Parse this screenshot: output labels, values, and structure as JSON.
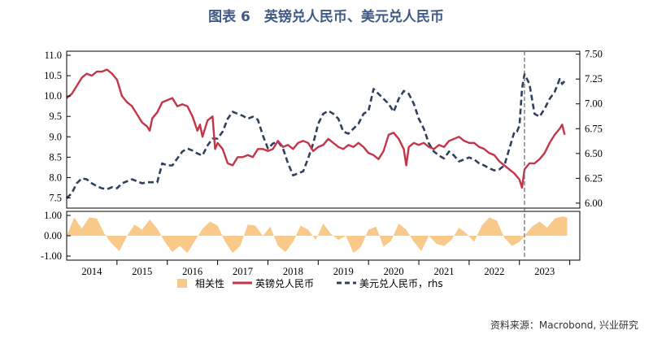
{
  "chart_data": {
    "type": "line",
    "title": "图表 6　英镑兑人民币、美元兑人民币",
    "source": "资料来源：Macrobond, 兴业研究",
    "x_tick_labels": [
      "2014",
      "2015",
      "2016",
      "2017",
      "2018",
      "2019",
      "2020",
      "2021",
      "2022",
      "2023"
    ],
    "xlim": [
      2013.5,
      2023.7
    ],
    "vertical_line_at": 2022.6,
    "left_axis": {
      "ylim": [
        7.25,
        11.1
      ],
      "ticks": [
        "7.5",
        "8.0",
        "8.5",
        "9.0",
        "9.5",
        "10.0",
        "10.5",
        "11.0"
      ]
    },
    "right_axis": {
      "ylim": [
        5.95,
        7.53
      ],
      "ticks": [
        "6.00",
        "6.25",
        "6.50",
        "6.75",
        "7.00",
        "7.25",
        "7.50"
      ]
    },
    "bottom_axis": {
      "ylim": [
        -1.2,
        1.2
      ],
      "ticks": [
        "1.00",
        "0.00",
        "-1.00"
      ]
    },
    "legend": [
      {
        "name": "相关性",
        "color": "#f9c98a",
        "style": "bar"
      },
      {
        "name": "英镑兑人民币",
        "color": "#c4354a",
        "style": "solid"
      },
      {
        "name": "美元兑人民币，rhs",
        "color": "#2f4060",
        "style": "dashed"
      }
    ],
    "series": [
      {
        "name": "英镑兑人民币",
        "axis": "left",
        "points": [
          [
            2013.5,
            9.95
          ],
          [
            2013.6,
            10.05
          ],
          [
            2013.7,
            10.25
          ],
          [
            2013.8,
            10.45
          ],
          [
            2013.9,
            10.55
          ],
          [
            2014.0,
            10.5
          ],
          [
            2014.1,
            10.6
          ],
          [
            2014.2,
            10.6
          ],
          [
            2014.3,
            10.65
          ],
          [
            2014.4,
            10.55
          ],
          [
            2014.5,
            10.4
          ],
          [
            2014.6,
            10.0
          ],
          [
            2014.7,
            9.85
          ],
          [
            2014.8,
            9.75
          ],
          [
            2014.9,
            9.55
          ],
          [
            2015.0,
            9.35
          ],
          [
            2015.1,
            9.25
          ],
          [
            2015.15,
            9.15
          ],
          [
            2015.2,
            9.45
          ],
          [
            2015.3,
            9.6
          ],
          [
            2015.4,
            9.85
          ],
          [
            2015.5,
            9.9
          ],
          [
            2015.6,
            9.95
          ],
          [
            2015.7,
            9.75
          ],
          [
            2015.8,
            9.8
          ],
          [
            2015.9,
            9.75
          ],
          [
            2016.0,
            9.5
          ],
          [
            2016.1,
            9.15
          ],
          [
            2016.15,
            9.3
          ],
          [
            2016.2,
            9.0
          ],
          [
            2016.3,
            9.4
          ],
          [
            2016.4,
            9.5
          ],
          [
            2016.45,
            8.7
          ],
          [
            2016.5,
            8.85
          ],
          [
            2016.6,
            8.7
          ],
          [
            2016.7,
            8.35
          ],
          [
            2016.8,
            8.3
          ],
          [
            2016.9,
            8.5
          ],
          [
            2017.0,
            8.5
          ],
          [
            2017.1,
            8.55
          ],
          [
            2017.2,
            8.5
          ],
          [
            2017.3,
            8.7
          ],
          [
            2017.4,
            8.7
          ],
          [
            2017.5,
            8.65
          ],
          [
            2017.6,
            8.7
          ],
          [
            2017.7,
            8.9
          ],
          [
            2017.8,
            8.75
          ],
          [
            2017.9,
            8.8
          ],
          [
            2018.0,
            8.7
          ],
          [
            2018.1,
            8.85
          ],
          [
            2018.2,
            8.9
          ],
          [
            2018.3,
            8.85
          ],
          [
            2018.4,
            8.65
          ],
          [
            2018.5,
            8.75
          ],
          [
            2018.6,
            8.8
          ],
          [
            2018.7,
            8.95
          ],
          [
            2018.8,
            8.85
          ],
          [
            2018.9,
            8.75
          ],
          [
            2019.0,
            8.7
          ],
          [
            2019.1,
            8.8
          ],
          [
            2019.2,
            8.75
          ],
          [
            2019.3,
            8.85
          ],
          [
            2019.4,
            8.75
          ],
          [
            2019.5,
            8.6
          ],
          [
            2019.6,
            8.55
          ],
          [
            2019.7,
            8.45
          ],
          [
            2019.8,
            8.65
          ],
          [
            2019.9,
            9.05
          ],
          [
            2020.0,
            9.1
          ],
          [
            2020.1,
            8.95
          ],
          [
            2020.2,
            8.7
          ],
          [
            2020.25,
            8.3
          ],
          [
            2020.3,
            8.75
          ],
          [
            2020.4,
            8.85
          ],
          [
            2020.5,
            8.8
          ],
          [
            2020.6,
            8.85
          ],
          [
            2020.7,
            8.75
          ],
          [
            2020.8,
            8.7
          ],
          [
            2020.9,
            8.8
          ],
          [
            2021.0,
            8.75
          ],
          [
            2021.1,
            8.9
          ],
          [
            2021.2,
            8.95
          ],
          [
            2021.3,
            9.0
          ],
          [
            2021.4,
            8.9
          ],
          [
            2021.5,
            8.85
          ],
          [
            2021.6,
            8.85
          ],
          [
            2021.7,
            8.75
          ],
          [
            2021.8,
            8.7
          ],
          [
            2021.9,
            8.6
          ],
          [
            2022.0,
            8.55
          ],
          [
            2022.1,
            8.4
          ],
          [
            2022.2,
            8.3
          ],
          [
            2022.3,
            8.2
          ],
          [
            2022.4,
            8.1
          ],
          [
            2022.5,
            7.95
          ],
          [
            2022.55,
            7.75
          ],
          [
            2022.6,
            8.2
          ],
          [
            2022.7,
            8.35
          ],
          [
            2022.8,
            8.35
          ],
          [
            2022.9,
            8.45
          ],
          [
            2023.0,
            8.6
          ],
          [
            2023.1,
            8.85
          ],
          [
            2023.2,
            9.05
          ],
          [
            2023.3,
            9.2
          ],
          [
            2023.35,
            9.3
          ],
          [
            2023.4,
            9.05
          ]
        ]
      },
      {
        "name": "美元兑人民币，rhs",
        "axis": "right",
        "points": [
          [
            2013.5,
            6.05
          ],
          [
            2013.6,
            6.1
          ],
          [
            2013.7,
            6.2
          ],
          [
            2013.8,
            6.25
          ],
          [
            2013.9,
            6.24
          ],
          [
            2014.0,
            6.2
          ],
          [
            2014.1,
            6.17
          ],
          [
            2014.2,
            6.15
          ],
          [
            2014.3,
            6.14
          ],
          [
            2014.4,
            6.16
          ],
          [
            2014.5,
            6.15
          ],
          [
            2014.6,
            6.2
          ],
          [
            2014.7,
            6.22
          ],
          [
            2014.8,
            6.24
          ],
          [
            2014.9,
            6.22
          ],
          [
            2015.0,
            6.2
          ],
          [
            2015.1,
            6.21
          ],
          [
            2015.2,
            6.21
          ],
          [
            2015.3,
            6.21
          ],
          [
            2015.4,
            6.4
          ],
          [
            2015.5,
            6.38
          ],
          [
            2015.6,
            6.38
          ],
          [
            2015.7,
            6.45
          ],
          [
            2015.8,
            6.52
          ],
          [
            2015.9,
            6.55
          ],
          [
            2016.0,
            6.53
          ],
          [
            2016.1,
            6.5
          ],
          [
            2016.2,
            6.48
          ],
          [
            2016.3,
            6.58
          ],
          [
            2016.4,
            6.65
          ],
          [
            2016.5,
            6.65
          ],
          [
            2016.6,
            6.72
          ],
          [
            2016.7,
            6.85
          ],
          [
            2016.8,
            6.92
          ],
          [
            2016.9,
            6.9
          ],
          [
            2017.0,
            6.88
          ],
          [
            2017.1,
            6.85
          ],
          [
            2017.2,
            6.87
          ],
          [
            2017.3,
            6.84
          ],
          [
            2017.4,
            6.68
          ],
          [
            2017.5,
            6.55
          ],
          [
            2017.6,
            6.6
          ],
          [
            2017.7,
            6.62
          ],
          [
            2017.8,
            6.55
          ],
          [
            2017.9,
            6.4
          ],
          [
            2018.0,
            6.28
          ],
          [
            2018.1,
            6.3
          ],
          [
            2018.2,
            6.32
          ],
          [
            2018.3,
            6.45
          ],
          [
            2018.4,
            6.6
          ],
          [
            2018.5,
            6.8
          ],
          [
            2018.6,
            6.9
          ],
          [
            2018.7,
            6.93
          ],
          [
            2018.8,
            6.9
          ],
          [
            2018.9,
            6.85
          ],
          [
            2019.0,
            6.72
          ],
          [
            2019.1,
            6.7
          ],
          [
            2019.2,
            6.75
          ],
          [
            2019.3,
            6.8
          ],
          [
            2019.4,
            6.9
          ],
          [
            2019.5,
            6.93
          ],
          [
            2019.6,
            7.15
          ],
          [
            2019.7,
            7.1
          ],
          [
            2019.8,
            7.05
          ],
          [
            2019.9,
            7.0
          ],
          [
            2020.0,
            6.92
          ],
          [
            2020.1,
            7.05
          ],
          [
            2020.2,
            7.13
          ],
          [
            2020.3,
            7.1
          ],
          [
            2020.4,
            7.0
          ],
          [
            2020.5,
            6.85
          ],
          [
            2020.6,
            6.75
          ],
          [
            2020.7,
            6.6
          ],
          [
            2020.8,
            6.52
          ],
          [
            2020.9,
            6.48
          ],
          [
            2021.0,
            6.45
          ],
          [
            2021.1,
            6.52
          ],
          [
            2021.2,
            6.48
          ],
          [
            2021.3,
            6.42
          ],
          [
            2021.4,
            6.44
          ],
          [
            2021.5,
            6.46
          ],
          [
            2021.6,
            6.44
          ],
          [
            2021.7,
            6.4
          ],
          [
            2021.8,
            6.38
          ],
          [
            2021.9,
            6.35
          ],
          [
            2022.0,
            6.33
          ],
          [
            2022.1,
            6.34
          ],
          [
            2022.2,
            6.38
          ],
          [
            2022.3,
            6.55
          ],
          [
            2022.4,
            6.72
          ],
          [
            2022.45,
            6.72
          ],
          [
            2022.5,
            6.78
          ],
          [
            2022.55,
            7.15
          ],
          [
            2022.6,
            7.3
          ],
          [
            2022.7,
            7.2
          ],
          [
            2022.8,
            6.9
          ],
          [
            2022.9,
            6.87
          ],
          [
            2023.0,
            6.95
          ],
          [
            2023.1,
            7.05
          ],
          [
            2023.2,
            7.12
          ],
          [
            2023.3,
            7.25
          ],
          [
            2023.35,
            7.2
          ],
          [
            2023.4,
            7.23
          ]
        ]
      },
      {
        "name": "相关性",
        "axis": "bottom",
        "points": [
          [
            2013.5,
            0.0
          ],
          [
            2013.65,
            0.9
          ],
          [
            2013.8,
            0.35
          ],
          [
            2013.95,
            0.9
          ],
          [
            2014.1,
            0.85
          ],
          [
            2014.25,
            0.1
          ],
          [
            2014.4,
            -0.4
          ],
          [
            2014.55,
            -0.75
          ],
          [
            2014.7,
            0.0
          ],
          [
            2014.85,
            0.55
          ],
          [
            2015.0,
            0.3
          ],
          [
            2015.15,
            0.8
          ],
          [
            2015.3,
            0.35
          ],
          [
            2015.45,
            -0.3
          ],
          [
            2015.6,
            -0.8
          ],
          [
            2015.75,
            -0.5
          ],
          [
            2015.9,
            -0.85
          ],
          [
            2016.05,
            -0.25
          ],
          [
            2016.2,
            0.35
          ],
          [
            2016.35,
            0.7
          ],
          [
            2016.5,
            0.5
          ],
          [
            2016.65,
            -0.3
          ],
          [
            2016.8,
            -0.85
          ],
          [
            2016.95,
            -0.5
          ],
          [
            2017.1,
            0.55
          ],
          [
            2017.25,
            0.5
          ],
          [
            2017.4,
            0.0
          ],
          [
            2017.55,
            0.45
          ],
          [
            2017.7,
            -0.5
          ],
          [
            2017.85,
            -0.8
          ],
          [
            2018.0,
            -0.3
          ],
          [
            2018.15,
            0.5
          ],
          [
            2018.3,
            0.3
          ],
          [
            2018.45,
            -0.2
          ],
          [
            2018.6,
            0.6
          ],
          [
            2018.75,
            0.1
          ],
          [
            2018.9,
            -0.2
          ],
          [
            2019.05,
            0.0
          ],
          [
            2019.2,
            -0.85
          ],
          [
            2019.35,
            -0.55
          ],
          [
            2019.5,
            0.3
          ],
          [
            2019.65,
            0.45
          ],
          [
            2019.8,
            -0.55
          ],
          [
            2019.95,
            -0.25
          ],
          [
            2020.1,
            0.6
          ],
          [
            2020.25,
            0.3
          ],
          [
            2020.4,
            -0.3
          ],
          [
            2020.55,
            -0.75
          ],
          [
            2020.7,
            0.0
          ],
          [
            2020.85,
            -0.4
          ],
          [
            2021.0,
            -0.5
          ],
          [
            2021.15,
            -0.2
          ],
          [
            2021.3,
            0.4
          ],
          [
            2021.45,
            0.1
          ],
          [
            2021.6,
            -0.3
          ],
          [
            2021.75,
            0.5
          ],
          [
            2021.9,
            0.9
          ],
          [
            2022.05,
            0.75
          ],
          [
            2022.2,
            -0.1
          ],
          [
            2022.35,
            -0.5
          ],
          [
            2022.5,
            -0.3
          ],
          [
            2022.6,
            0.0
          ],
          [
            2022.75,
            0.45
          ],
          [
            2022.9,
            0.7
          ],
          [
            2023.05,
            0.4
          ],
          [
            2023.2,
            0.85
          ],
          [
            2023.35,
            0.95
          ],
          [
            2023.45,
            0.9
          ]
        ]
      }
    ]
  }
}
